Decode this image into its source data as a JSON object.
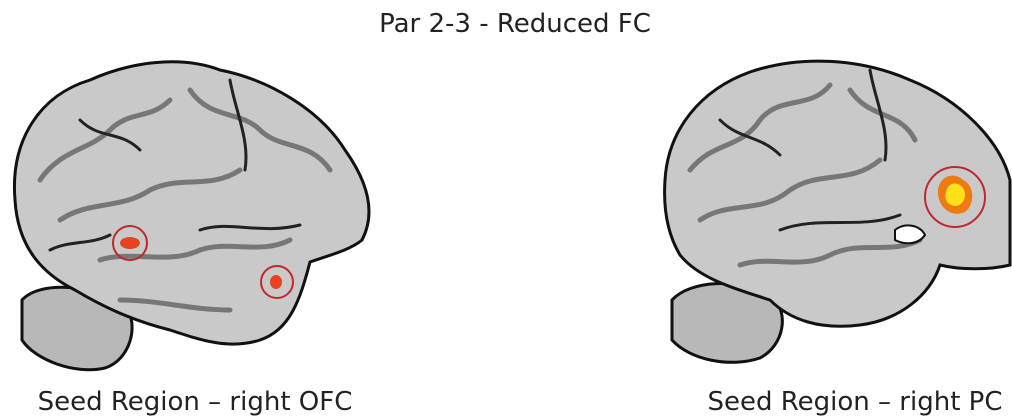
{
  "title": "Par 2-3 - Reduced FC",
  "panels": [
    {
      "caption": "Seed Region – right OFC"
    },
    {
      "caption": "Seed Region – right PC"
    }
  ]
}
